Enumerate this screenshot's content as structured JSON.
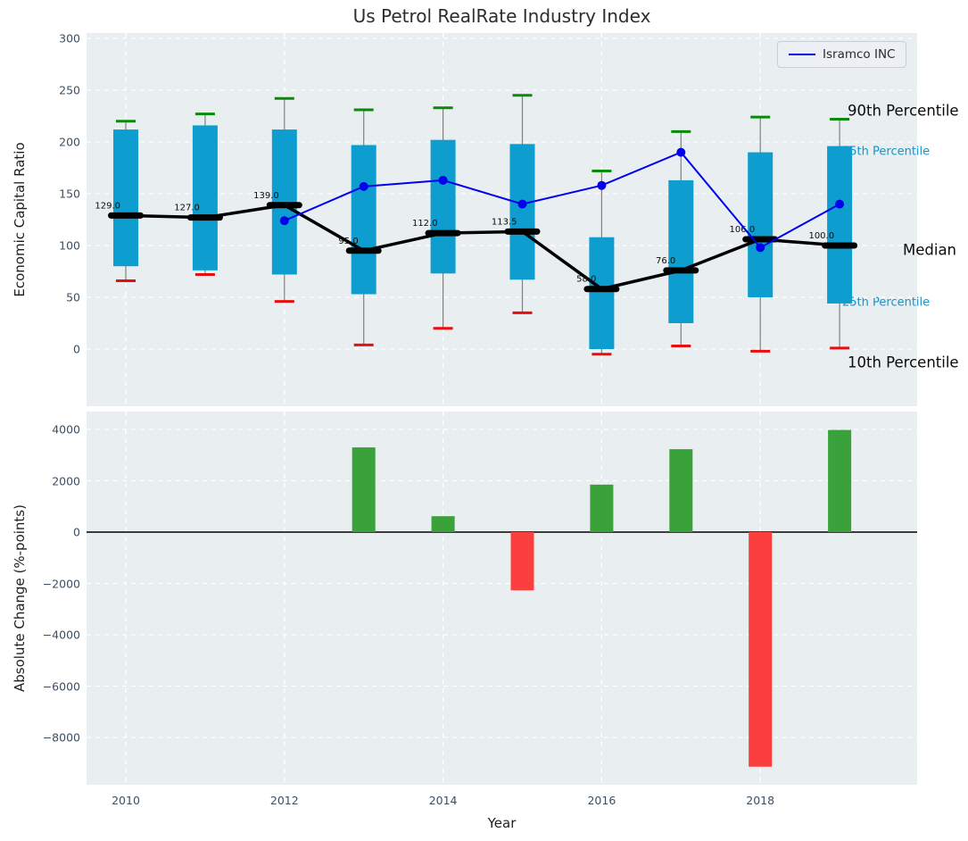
{
  "title": "Us Petrol RealRate Industry Index",
  "legend": {
    "label": "Isramco INC"
  },
  "annotations": {
    "p90": "90th Percentile",
    "p75": "75th Percentile",
    "median": "Median",
    "p25": "25th Percentile",
    "p10": "10th Percentile"
  },
  "colors": {
    "box_fill": "#0d9ecf",
    "cap_top": "#0a8a0a",
    "cap_bottom": "#e90d0d",
    "whisker": "#808080",
    "median": "#000000",
    "isramco_line": "#0000ee",
    "bar_positive": "#3aa23a",
    "bar_negative": "#fb3e3e",
    "panel_bg": "#e9eef0",
    "grid": "#ffffff",
    "tick_text": "#3d4f63"
  },
  "chart_data": [
    {
      "type": "box",
      "title": "Us Petrol RealRate Industry Index",
      "ylabel": "Economic Capital Ratio",
      "yticks": [
        300,
        250,
        200,
        150,
        100,
        50,
        0
      ],
      "ylim": [
        -55,
        305
      ],
      "xlim": [
        2009.5,
        2020
      ],
      "grid": "white dashed, horizontal at yticks, vertical at even years",
      "legend_position": "upper right",
      "years": [
        2010,
        2011,
        2012,
        2013,
        2014,
        2015,
        2016,
        2017,
        2018,
        2019
      ],
      "grid_years": [
        2010,
        2012,
        2014,
        2016,
        2018
      ],
      "p90": [
        220,
        227,
        242,
        231,
        233,
        245,
        172,
        210,
        224,
        222
      ],
      "p75": [
        212,
        216,
        212,
        197,
        202,
        198,
        108,
        163,
        190,
        196
      ],
      "median": [
        129,
        127,
        139,
        95,
        112,
        113.5,
        58,
        76,
        106,
        100
      ],
      "p25": [
        80,
        76,
        72,
        53,
        73,
        67,
        0,
        25,
        50,
        44
      ],
      "p10": [
        66,
        72,
        46,
        4,
        20,
        35,
        -5,
        3,
        -2,
        1
      ],
      "median_labels": [
        "129.0",
        "127.0",
        "139.0",
        "95.0",
        "112.0",
        "113.5",
        "58.0",
        "76.0",
        "106.0",
        "100.0"
      ],
      "series": [
        {
          "name": "Isramco INC",
          "x": [
            2012,
            2013,
            2014,
            2015,
            2016,
            2017,
            2018,
            2019
          ],
          "y": [
            124,
            157,
            163,
            140,
            158,
            190,
            98,
            140
          ]
        }
      ]
    },
    {
      "type": "bar",
      "ylabel": "Absolute Change (%-points)",
      "xlabel": "Year",
      "yticks": [
        4000,
        2000,
        0,
        -2000,
        -4000,
        -6000,
        -8000
      ],
      "ytick_labels": [
        "4000",
        "2000",
        "0",
        "−2000",
        "−4000",
        "−6000",
        "−8000"
      ],
      "ylim": [
        -9800,
        4700
      ],
      "xtick_labels": [
        "2010",
        "2012",
        "2014",
        "2016",
        "2018"
      ],
      "xtick_years": [
        2010,
        2012,
        2014,
        2016,
        2018
      ],
      "categories": [
        2010,
        2011,
        2012,
        2013,
        2014,
        2015,
        2016,
        2017,
        2018,
        2019
      ],
      "values": [
        null,
        null,
        null,
        3300,
        620,
        -2270,
        1850,
        3230,
        -9140,
        3980
      ],
      "color_rule": "green if positive, red if negative"
    }
  ]
}
